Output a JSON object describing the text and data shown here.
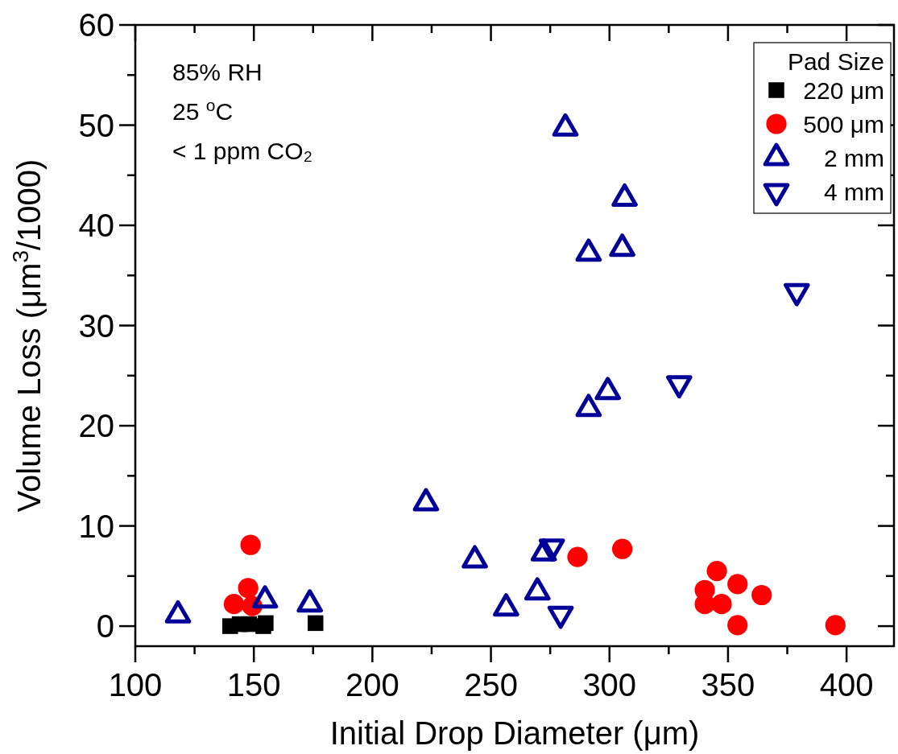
{
  "chart_data": {
    "type": "scatter",
    "xlabel": "Initial Drop Diameter (μm)",
    "ylabel": "Volume Loss (μm$^{3}$/1000)",
    "legend_title": "Pad Size",
    "legend": "top right",
    "grid": false,
    "xlim": [
      100,
      420
    ],
    "ylim": [
      -2,
      60
    ],
    "xticks": [
      100,
      {
        "value": 125,
        "label": null
      },
      150,
      {
        "value": 175,
        "label": null
      },
      200,
      {
        "value": 225,
        "label": null
      },
      250,
      {
        "value": 275,
        "label": null
      },
      300,
      {
        "value": 325,
        "label": null
      },
      350,
      {
        "value": 375,
        "label": null
      },
      400
    ],
    "yticks": [
      0,
      {
        "value": 5,
        "label": null
      },
      10,
      {
        "value": 15,
        "label": null
      },
      20,
      {
        "value": 25,
        "label": null
      },
      30,
      {
        "value": 35,
        "label": null
      },
      40,
      {
        "value": 45,
        "label": null
      },
      50,
      {
        "value": 55,
        "label": null
      },
      60
    ],
    "annotations": [
      "85% RH",
      "25 $^{o}$C",
      "< 1 ppm CO₂"
    ],
    "series": [
      {
        "name": "220 μm",
        "color": "#000000",
        "marker": "square",
        "x": [
          140,
          144,
          148,
          154,
          155,
          176
        ],
        "values": [
          0,
          0.2,
          0.2,
          0,
          0.3,
          0.3
        ]
      },
      {
        "name": "500 μm",
        "color": "#ff0000",
        "marker": "circle",
        "x": [
          148.6,
          147.6,
          141.6,
          149.3,
          286.5,
          305.4,
          345.3,
          354,
          340.2,
          364.2,
          340.2,
          347.3,
          354,
          395.3
        ],
        "values": [
          8.1,
          3.8,
          2.2,
          2.0,
          6.9,
          7.7,
          5.5,
          4.2,
          3.6,
          3.1,
          2.2,
          2.2,
          0.1,
          0.1
        ]
      },
      {
        "name": "2 mm",
        "color": "#000099",
        "marker": "triangle",
        "x": [
          118,
          154.7,
          173.6,
          222.6,
          243.2,
          256.4,
          269.6,
          272.3,
          281.4,
          306.4,
          291.2,
          305.4,
          299.3,
          291.2
        ],
        "values": [
          1.1,
          2.6,
          2.2,
          12.3,
          6.6,
          1.8,
          3.4,
          7.3,
          49.7,
          42.7,
          37.2,
          37.7,
          23.4,
          21.7
        ]
      },
      {
        "name": "4 mm",
        "color": "#000099",
        "marker": "triangle-down",
        "x": [
          379,
          329.4,
          275.7,
          279.4
        ],
        "values": [
          33.4,
          24.2,
          7.9,
          1.2
        ]
      }
    ]
  }
}
